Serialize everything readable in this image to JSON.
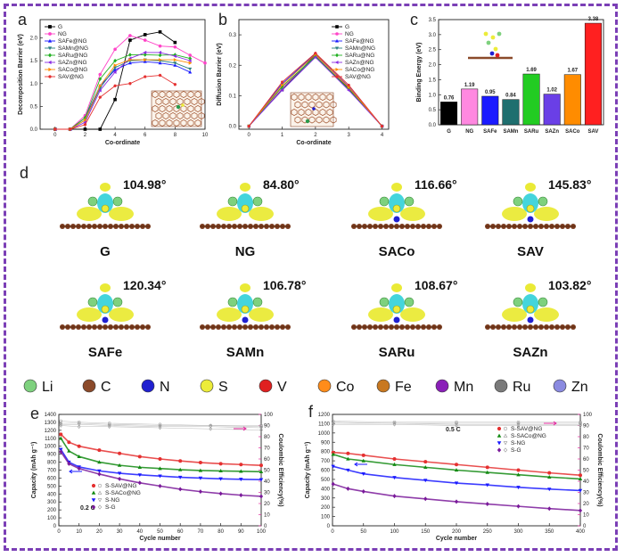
{
  "panels": {
    "a": "a",
    "b": "b",
    "c": "c",
    "d": "d",
    "e": "e",
    "f": "f"
  },
  "colors": {
    "frame": "#7b3fb6",
    "pink_axis": "#e0289d"
  },
  "series_colors": [
    "#000000",
    "#ff44c8",
    "#1a1aff",
    "#2a7f7f",
    "#22b022",
    "#8a2be2",
    "#ff8c00",
    "#e53030"
  ],
  "chart_data": [
    {
      "id": "a",
      "type": "line",
      "xlabel": "Co-ordinate",
      "ylabel": "Decomposition Barrier (eV)",
      "xlim": [
        -1,
        10
      ],
      "ylim": [
        0,
        2.4
      ],
      "xticks": [
        0,
        2,
        4,
        6,
        8,
        10
      ],
      "yticks": [
        0.0,
        0.5,
        1.0,
        1.5,
        2.0
      ],
      "legend_position": "top-left",
      "series": [
        {
          "name": "G",
          "x": [
            0,
            1,
            2,
            3,
            4,
            5,
            6,
            7,
            8
          ],
          "values": [
            0,
            0,
            0,
            0,
            0.65,
            1.95,
            2.07,
            2.13,
            1.9
          ]
        },
        {
          "name": "NG",
          "x": [
            0,
            1,
            2,
            3,
            4,
            5,
            6,
            7,
            8,
            9,
            10
          ],
          "values": [
            0,
            0,
            0.3,
            1.2,
            1.75,
            2.05,
            1.95,
            1.82,
            1.8,
            1.62,
            1.45
          ]
        },
        {
          "name": "SAFe@NG",
          "x": [
            0,
            1,
            2,
            3,
            4,
            5,
            6,
            7,
            8,
            9
          ],
          "values": [
            0,
            0,
            0.25,
            0.95,
            1.3,
            1.45,
            1.48,
            1.45,
            1.4,
            1.25
          ]
        },
        {
          "name": "SAMn@NG",
          "x": [
            0,
            1,
            2,
            3,
            4,
            5,
            6,
            7,
            8,
            9
          ],
          "values": [
            0,
            0,
            0.2,
            0.9,
            1.35,
            1.5,
            1.52,
            1.5,
            1.45,
            1.32
          ]
        },
        {
          "name": "SARu@NG",
          "x": [
            0,
            1,
            2,
            3,
            4,
            5,
            6,
            7,
            8,
            9
          ],
          "values": [
            0,
            0,
            0.25,
            1.1,
            1.5,
            1.63,
            1.63,
            1.62,
            1.63,
            1.55
          ]
        },
        {
          "name": "SAZn@NG",
          "x": [
            0,
            1,
            2,
            3,
            4,
            5,
            6,
            7,
            8,
            9
          ],
          "values": [
            0,
            0,
            0.15,
            0.85,
            1.25,
            1.55,
            1.68,
            1.68,
            1.6,
            1.5
          ]
        },
        {
          "name": "SACo@NG",
          "x": [
            0,
            1,
            2,
            3,
            4,
            5,
            6,
            7,
            8,
            9
          ],
          "values": [
            0,
            0,
            0.2,
            0.95,
            1.4,
            1.52,
            1.52,
            1.52,
            1.52,
            1.45
          ]
        },
        {
          "name": "SAV@NG",
          "x": [
            0,
            1,
            2,
            3,
            4,
            5,
            6,
            7,
            8
          ],
          "values": [
            0,
            0,
            0.1,
            0.7,
            0.95,
            1.0,
            1.15,
            1.18,
            0.98
          ]
        }
      ]
    },
    {
      "id": "b",
      "type": "line",
      "xlabel": "Co-ordinate",
      "ylabel": "Diffusion Barrier (eV)",
      "xlim": [
        -0.3,
        4.2
      ],
      "ylim": [
        -0.01,
        0.35
      ],
      "xticks": [
        0,
        1,
        2,
        3,
        4
      ],
      "yticks": [
        0.0,
        0.1,
        0.2,
        0.3
      ],
      "legend_position": "top-right",
      "series": [
        {
          "name": "G",
          "x": [
            0,
            1,
            2,
            3,
            4
          ],
          "values": [
            0,
            0.12,
            0.235,
            0.125,
            0
          ]
        },
        {
          "name": "NG",
          "x": [
            0,
            1,
            2,
            3,
            4
          ],
          "values": [
            0,
            0.125,
            0.232,
            0.127,
            0
          ]
        },
        {
          "name": "SAFe@NG",
          "x": [
            0,
            1,
            2,
            3,
            4
          ],
          "values": [
            0,
            0.14,
            0.238,
            0.13,
            0
          ]
        },
        {
          "name": "SAMn@NG",
          "x": [
            0,
            1,
            2,
            3,
            4
          ],
          "values": [
            0,
            0.12,
            0.228,
            0.12,
            0
          ]
        },
        {
          "name": "SARu@NG",
          "x": [
            0,
            1,
            2,
            3,
            4
          ],
          "values": [
            0,
            0.13,
            0.23,
            0.122,
            0
          ]
        },
        {
          "name": "SAZn@NG",
          "x": [
            0,
            1,
            2,
            3,
            4
          ],
          "values": [
            0,
            0.118,
            0.226,
            0.118,
            0
          ]
        },
        {
          "name": "SACo@NG",
          "x": [
            0,
            1,
            2,
            3,
            4
          ],
          "values": [
            0,
            0.135,
            0.236,
            0.128,
            0
          ]
        },
        {
          "name": "SAV@NG",
          "x": [
            0,
            1,
            2,
            3,
            4
          ],
          "values": [
            0,
            0.145,
            0.24,
            0.135,
            0
          ]
        }
      ]
    },
    {
      "id": "c",
      "type": "bar",
      "ylabel": "Binding Energy (eV)",
      "ylim": [
        0,
        3.5
      ],
      "yticks": [
        0.0,
        0.5,
        1.0,
        1.5,
        2.0,
        2.5,
        3.0,
        3.5
      ],
      "categories": [
        "G",
        "NG",
        "SAFe",
        "SAMn",
        "SARu",
        "SAZn",
        "SACo",
        "SAV"
      ],
      "values": [
        0.76,
        1.19,
        0.95,
        0.84,
        1.69,
        1.02,
        1.67,
        3.38
      ],
      "value_labels": [
        "0.76",
        "1.19",
        "0.95",
        "0.84",
        "1.69",
        "1.02",
        "1.67",
        "3.38"
      ],
      "bar_colors": [
        "#000000",
        "#ff88e0",
        "#1a1aff",
        "#1f6f6f",
        "#22cc22",
        "#6a3fe6",
        "#ff8c00",
        "#ff2020"
      ]
    },
    {
      "id": "e",
      "type": "scatter",
      "xlabel": "Cycle number",
      "ylabel": "Capacity (mAh g⁻¹)",
      "y2label": "Coulombic Efficiency(%)",
      "xlim": [
        0,
        100
      ],
      "ylim": [
        0,
        1400
      ],
      "y2lim": [
        0,
        100
      ],
      "xticks": [
        0,
        10,
        20,
        30,
        40,
        50,
        60,
        70,
        80,
        90,
        100
      ],
      "yticks": [
        0,
        100,
        200,
        300,
        400,
        500,
        600,
        700,
        800,
        900,
        1000,
        1100,
        1200,
        1300,
        1400
      ],
      "y2ticks": [
        0,
        10,
        20,
        30,
        40,
        50,
        60,
        70,
        80,
        90,
        100
      ],
      "annotation": "0.2 C",
      "legend_position": "bottom-left",
      "series": [
        {
          "name": "S-SAV@NG",
          "x": [
            1,
            5,
            10,
            20,
            30,
            40,
            50,
            60,
            70,
            80,
            90,
            100
          ],
          "values": [
            1150,
            1050,
            1000,
            950,
            910,
            870,
            840,
            815,
            795,
            780,
            770,
            760
          ]
        },
        {
          "name": "S-SACo@NG",
          "x": [
            1,
            5,
            10,
            20,
            30,
            40,
            50,
            60,
            70,
            80,
            90,
            100
          ],
          "values": [
            1100,
            940,
            870,
            800,
            760,
            735,
            720,
            705,
            695,
            690,
            685,
            680
          ]
        },
        {
          "name": "S-NG",
          "x": [
            1,
            5,
            10,
            20,
            30,
            40,
            50,
            60,
            70,
            80,
            90,
            100
          ],
          "values": [
            960,
            800,
            740,
            690,
            660,
            640,
            625,
            610,
            600,
            590,
            585,
            580
          ]
        },
        {
          "name": "S-G",
          "x": [
            1,
            5,
            10,
            20,
            30,
            40,
            50,
            60,
            70,
            80,
            90,
            100
          ],
          "values": [
            930,
            780,
            720,
            650,
            590,
            540,
            500,
            460,
            430,
            405,
            385,
            370
          ]
        }
      ],
      "efficiency_series": [
        {
          "name": "S-SAV@NG",
          "x": [
            1,
            10,
            25,
            50,
            75,
            100
          ],
          "values": [
            94,
            93,
            92,
            91,
            90,
            90
          ]
        },
        {
          "name": "S-SACo@NG",
          "x": [
            1,
            10,
            25,
            50,
            75,
            100
          ],
          "values": [
            92,
            92,
            91,
            90,
            90,
            89
          ]
        },
        {
          "name": "S-NG",
          "x": [
            1,
            10,
            25,
            50,
            75,
            100
          ],
          "values": [
            91,
            91,
            90,
            89,
            89,
            88
          ]
        },
        {
          "name": "S-G",
          "x": [
            1,
            10,
            25,
            50,
            75,
            100
          ],
          "values": [
            90,
            89,
            89,
            88,
            87,
            86
          ]
        }
      ]
    },
    {
      "id": "f",
      "type": "scatter",
      "xlabel": "Cycle number",
      "ylabel": "Capacity (mAh g⁻¹)",
      "y2label": "Coulombic Efficiency(%)",
      "xlim": [
        0,
        400
      ],
      "ylim": [
        0,
        1200
      ],
      "y2lim": [
        0,
        100
      ],
      "xticks": [
        0,
        50,
        100,
        150,
        200,
        250,
        300,
        350,
        400
      ],
      "yticks": [
        0,
        100,
        200,
        300,
        400,
        500,
        600,
        700,
        800,
        900,
        1000,
        1100,
        1200
      ],
      "y2ticks": [
        0,
        10,
        20,
        30,
        40,
        50,
        60,
        70,
        80,
        90,
        100
      ],
      "annotation": "0.5 C",
      "legend_position": "top-right",
      "series": [
        {
          "name": "S-SAV@NG",
          "x": [
            1,
            25,
            50,
            100,
            150,
            200,
            250,
            300,
            350,
            400
          ],
          "values": [
            790,
            780,
            760,
            720,
            690,
            660,
            630,
            600,
            570,
            545
          ]
        },
        {
          "name": "S-SACo@NG",
          "x": [
            1,
            25,
            50,
            100,
            150,
            200,
            250,
            300,
            350,
            400
          ],
          "values": [
            770,
            720,
            700,
            660,
            630,
            600,
            575,
            550,
            525,
            505
          ]
        },
        {
          "name": "S-NG",
          "x": [
            1,
            25,
            50,
            100,
            150,
            200,
            250,
            300,
            350,
            400
          ],
          "values": [
            640,
            600,
            560,
            520,
            490,
            460,
            440,
            415,
            395,
            380
          ]
        },
        {
          "name": "S-G",
          "x": [
            1,
            25,
            50,
            100,
            150,
            200,
            250,
            300,
            350,
            400
          ],
          "values": [
            450,
            400,
            370,
            320,
            290,
            260,
            235,
            210,
            185,
            165
          ]
        }
      ],
      "efficiency_series": [
        {
          "name": "S-SAV@NG",
          "x": [
            1,
            100,
            200,
            300,
            400
          ],
          "values": [
            94,
            93,
            93,
            93,
            93
          ]
        },
        {
          "name": "S-SACo@NG",
          "x": [
            1,
            100,
            200,
            300,
            400
          ],
          "values": [
            93,
            92,
            92,
            92,
            92
          ]
        },
        {
          "name": "S-NG",
          "x": [
            1,
            100,
            200,
            300,
            400
          ],
          "values": [
            92,
            92,
            91,
            91,
            91
          ]
        },
        {
          "name": "S-G",
          "x": [
            1,
            100,
            200,
            300,
            400
          ],
          "values": [
            91,
            91,
            90,
            90,
            90
          ]
        }
      ]
    }
  ],
  "panel_d": {
    "structures": [
      {
        "name": "G",
        "angle": "104.98°"
      },
      {
        "name": "NG",
        "angle": "84.80°"
      },
      {
        "name": "SACo",
        "angle": "116.66°"
      },
      {
        "name": "SAV",
        "angle": "145.83°"
      },
      {
        "name": "SAFe",
        "angle": "120.34°"
      },
      {
        "name": "SAMn",
        "angle": "106.78°"
      },
      {
        "name": "SARu",
        "angle": "108.67°"
      },
      {
        "name": "SAZn",
        "angle": "103.82°"
      }
    ]
  },
  "element_legend": [
    {
      "symbol": "Li",
      "color": "#7ed17e"
    },
    {
      "symbol": "C",
      "color": "#8b4a2a"
    },
    {
      "symbol": "N",
      "color": "#2020d0"
    },
    {
      "symbol": "S",
      "color": "#ecec3a"
    },
    {
      "symbol": "V",
      "color": "#e02020"
    },
    {
      "symbol": "Co",
      "color": "#ff8c1a"
    },
    {
      "symbol": "Fe",
      "color": "#c87820"
    },
    {
      "symbol": "Mn",
      "color": "#8a1fb8"
    },
    {
      "symbol": "Ru",
      "color": "#7a7a7a"
    },
    {
      "symbol": "Zn",
      "color": "#8a8ae0"
    }
  ]
}
